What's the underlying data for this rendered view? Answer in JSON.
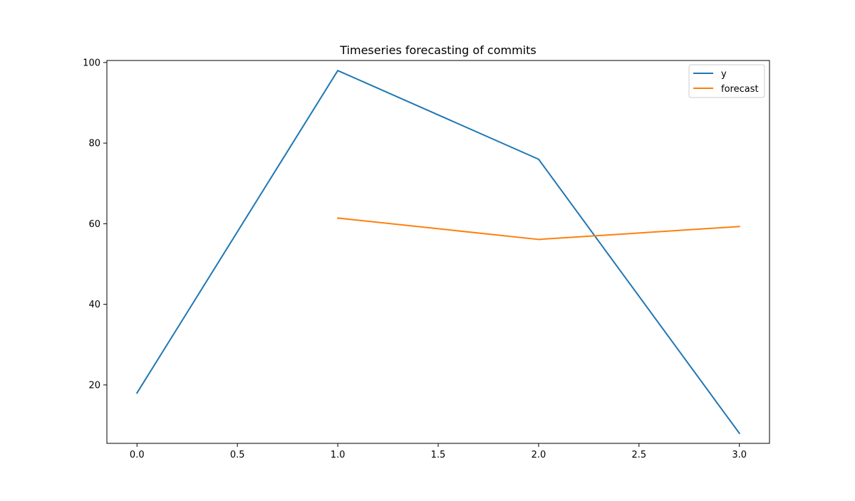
{
  "chart_data": {
    "type": "line",
    "title": "Timeseries forecasting of commits",
    "xlabel": "",
    "ylabel": "",
    "xlim": [
      -0.15,
      3.15
    ],
    "ylim": [
      5.5,
      100.5
    ],
    "xticks": [
      0.0,
      0.5,
      1.0,
      1.5,
      2.0,
      2.5,
      3.0
    ],
    "xtick_labels": [
      "0.0",
      "0.5",
      "1.0",
      "1.5",
      "2.0",
      "2.5",
      "3.0"
    ],
    "yticks": [
      20,
      40,
      60,
      80,
      100
    ],
    "ytick_labels": [
      "20",
      "40",
      "60",
      "80",
      "100"
    ],
    "grid": false,
    "legend_position": "top-right",
    "series": [
      {
        "name": "y",
        "color": "#1f77b4",
        "x": [
          0,
          1,
          2,
          3
        ],
        "values": [
          18,
          98,
          76,
          8
        ]
      },
      {
        "name": "forecast",
        "color": "#ff7f0e",
        "x": [
          1,
          2,
          3
        ],
        "values": [
          61.4,
          56.1,
          59.3
        ]
      }
    ]
  }
}
